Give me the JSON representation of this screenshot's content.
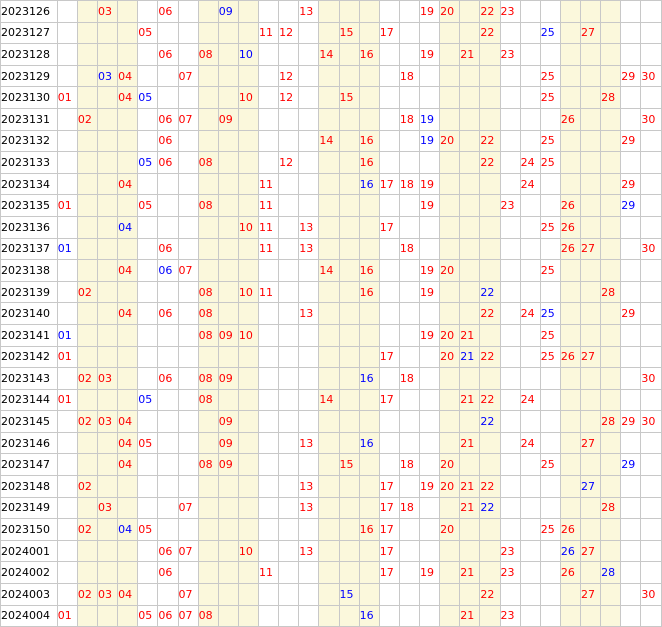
{
  "colors": {
    "red": "#ff0000",
    "blue": "#0000ff",
    "shade": "#fbf8dc",
    "grid": "#c8c8c8"
  },
  "number_columns": [
    "01",
    "02",
    "03",
    "04",
    "05",
    "06",
    "07",
    "08",
    "09",
    "10",
    "11",
    "12",
    "13",
    "14",
    "15",
    "16",
    "17",
    "18",
    "19",
    "20",
    "21",
    "22",
    "23",
    "24",
    "25",
    "26",
    "27",
    "28",
    "29",
    "30"
  ],
  "shaded_columns": [
    "02",
    "03",
    "04",
    "08",
    "09",
    "10",
    "14",
    "15",
    "16",
    "20",
    "21",
    "22",
    "26",
    "27",
    "28"
  ],
  "rows": [
    {
      "period": "2023126",
      "cells": [
        [
          "03",
          "r"
        ],
        [
          "06",
          "r"
        ],
        [
          "09",
          "b"
        ],
        [
          "13",
          "r"
        ],
        [
          "19",
          "r"
        ],
        [
          "20",
          "r"
        ],
        [
          "22",
          "r"
        ],
        [
          "23",
          "r"
        ]
      ]
    },
    {
      "period": "2023127",
      "cells": [
        [
          "05",
          "r"
        ],
        [
          "11",
          "r"
        ],
        [
          "12",
          "r"
        ],
        [
          "15",
          "r"
        ],
        [
          "17",
          "r"
        ],
        [
          "22",
          "r"
        ],
        [
          "25",
          "b"
        ],
        [
          "27",
          "r"
        ]
      ]
    },
    {
      "period": "2023128",
      "cells": [
        [
          "06",
          "r"
        ],
        [
          "08",
          "r"
        ],
        [
          "10",
          "b"
        ],
        [
          "14",
          "r"
        ],
        [
          "16",
          "r"
        ],
        [
          "19",
          "r"
        ],
        [
          "21",
          "r"
        ],
        [
          "23",
          "r"
        ]
      ]
    },
    {
      "period": "2023129",
      "cells": [
        [
          "03",
          "b"
        ],
        [
          "04",
          "r"
        ],
        [
          "07",
          "r"
        ],
        [
          "12",
          "r"
        ],
        [
          "18",
          "r"
        ],
        [
          "25",
          "r"
        ],
        [
          "29",
          "r"
        ],
        [
          "30",
          "r"
        ]
      ]
    },
    {
      "period": "2023130",
      "cells": [
        [
          "01",
          "r"
        ],
        [
          "04",
          "r"
        ],
        [
          "05",
          "b"
        ],
        [
          "10",
          "r"
        ],
        [
          "12",
          "r"
        ],
        [
          "15",
          "r"
        ],
        [
          "25",
          "r"
        ],
        [
          "28",
          "r"
        ]
      ]
    },
    {
      "period": "2023131",
      "cells": [
        [
          "02",
          "r"
        ],
        [
          "06",
          "r"
        ],
        [
          "07",
          "r"
        ],
        [
          "09",
          "r"
        ],
        [
          "18",
          "r"
        ],
        [
          "19",
          "b"
        ],
        [
          "26",
          "r"
        ],
        [
          "30",
          "r"
        ]
      ]
    },
    {
      "period": "2023132",
      "cells": [
        [
          "06",
          "r"
        ],
        [
          "14",
          "r"
        ],
        [
          "16",
          "r"
        ],
        [
          "19",
          "b"
        ],
        [
          "20",
          "r"
        ],
        [
          "22",
          "r"
        ],
        [
          "25",
          "r"
        ],
        [
          "29",
          "r"
        ]
      ]
    },
    {
      "period": "2023133",
      "cells": [
        [
          "05",
          "b"
        ],
        [
          "06",
          "r"
        ],
        [
          "08",
          "r"
        ],
        [
          "12",
          "r"
        ],
        [
          "16",
          "r"
        ],
        [
          "22",
          "r"
        ],
        [
          "24",
          "r"
        ],
        [
          "25",
          "r"
        ]
      ]
    },
    {
      "period": "2023134",
      "cells": [
        [
          "04",
          "r"
        ],
        [
          "11",
          "r"
        ],
        [
          "16",
          "b"
        ],
        [
          "17",
          "r"
        ],
        [
          "18",
          "r"
        ],
        [
          "19",
          "r"
        ],
        [
          "24",
          "r"
        ],
        [
          "29",
          "r"
        ]
      ]
    },
    {
      "period": "2023135",
      "cells": [
        [
          "01",
          "r"
        ],
        [
          "05",
          "r"
        ],
        [
          "08",
          "r"
        ],
        [
          "11",
          "r"
        ],
        [
          "19",
          "r"
        ],
        [
          "23",
          "r"
        ],
        [
          "26",
          "r"
        ],
        [
          "29",
          "b"
        ]
      ]
    },
    {
      "period": "2023136",
      "cells": [
        [
          "04",
          "b"
        ],
        [
          "10",
          "r"
        ],
        [
          "11",
          "r"
        ],
        [
          "13",
          "r"
        ],
        [
          "17",
          "r"
        ],
        [
          "25",
          "r"
        ],
        [
          "26",
          "r"
        ]
      ]
    },
    {
      "period": "2023137",
      "cells": [
        [
          "01",
          "b"
        ],
        [
          "06",
          "r"
        ],
        [
          "11",
          "r"
        ],
        [
          "13",
          "r"
        ],
        [
          "18",
          "r"
        ],
        [
          "26",
          "r"
        ],
        [
          "27",
          "r"
        ],
        [
          "30",
          "r"
        ]
      ]
    },
    {
      "period": "2023138",
      "cells": [
        [
          "04",
          "r"
        ],
        [
          "06",
          "b"
        ],
        [
          "07",
          "r"
        ],
        [
          "14",
          "r"
        ],
        [
          "16",
          "r"
        ],
        [
          "19",
          "r"
        ],
        [
          "20",
          "r"
        ],
        [
          "25",
          "r"
        ]
      ]
    },
    {
      "period": "2023139",
      "cells": [
        [
          "02",
          "r"
        ],
        [
          "08",
          "r"
        ],
        [
          "10",
          "r"
        ],
        [
          "11",
          "r"
        ],
        [
          "16",
          "r"
        ],
        [
          "19",
          "r"
        ],
        [
          "22",
          "b"
        ],
        [
          "28",
          "r"
        ]
      ]
    },
    {
      "period": "2023140",
      "cells": [
        [
          "04",
          "r"
        ],
        [
          "06",
          "r"
        ],
        [
          "08",
          "r"
        ],
        [
          "13",
          "r"
        ],
        [
          "22",
          "r"
        ],
        [
          "24",
          "r"
        ],
        [
          "25",
          "b"
        ],
        [
          "29",
          "r"
        ]
      ]
    },
    {
      "period": "2023141",
      "cells": [
        [
          "01",
          "b"
        ],
        [
          "08",
          "r"
        ],
        [
          "09",
          "r"
        ],
        [
          "10",
          "r"
        ],
        [
          "19",
          "r"
        ],
        [
          "20",
          "r"
        ],
        [
          "21",
          "r"
        ],
        [
          "25",
          "r"
        ]
      ]
    },
    {
      "period": "2023142",
      "cells": [
        [
          "01",
          "r"
        ],
        [
          "17",
          "r"
        ],
        [
          "20",
          "r"
        ],
        [
          "21",
          "b"
        ],
        [
          "22",
          "r"
        ],
        [
          "25",
          "r"
        ],
        [
          "26",
          "r"
        ],
        [
          "27",
          "r"
        ]
      ]
    },
    {
      "period": "2023143",
      "cells": [
        [
          "02",
          "r"
        ],
        [
          "03",
          "r"
        ],
        [
          "06",
          "r"
        ],
        [
          "08",
          "r"
        ],
        [
          "09",
          "r"
        ],
        [
          "16",
          "b"
        ],
        [
          "18",
          "r"
        ],
        [
          "30",
          "r"
        ]
      ]
    },
    {
      "period": "2023144",
      "cells": [
        [
          "01",
          "r"
        ],
        [
          "05",
          "b"
        ],
        [
          "08",
          "r"
        ],
        [
          "14",
          "r"
        ],
        [
          "17",
          "r"
        ],
        [
          "21",
          "r"
        ],
        [
          "22",
          "r"
        ],
        [
          "24",
          "r"
        ]
      ]
    },
    {
      "period": "2023145",
      "cells": [
        [
          "02",
          "r"
        ],
        [
          "03",
          "r"
        ],
        [
          "04",
          "r"
        ],
        [
          "09",
          "r"
        ],
        [
          "22",
          "b"
        ],
        [
          "28",
          "r"
        ],
        [
          "29",
          "r"
        ],
        [
          "30",
          "r"
        ]
      ]
    },
    {
      "period": "2023146",
      "cells": [
        [
          "04",
          "r"
        ],
        [
          "05",
          "r"
        ],
        [
          "09",
          "r"
        ],
        [
          "13",
          "r"
        ],
        [
          "16",
          "b"
        ],
        [
          "21",
          "r"
        ],
        [
          "24",
          "r"
        ],
        [
          "27",
          "r"
        ]
      ]
    },
    {
      "period": "2023147",
      "cells": [
        [
          "04",
          "r"
        ],
        [
          "08",
          "r"
        ],
        [
          "09",
          "r"
        ],
        [
          "15",
          "r"
        ],
        [
          "18",
          "r"
        ],
        [
          "20",
          "r"
        ],
        [
          "25",
          "r"
        ],
        [
          "29",
          "b"
        ]
      ]
    },
    {
      "period": "2023148",
      "cells": [
        [
          "02",
          "r"
        ],
        [
          "13",
          "r"
        ],
        [
          "17",
          "r"
        ],
        [
          "19",
          "r"
        ],
        [
          "20",
          "r"
        ],
        [
          "21",
          "r"
        ],
        [
          "22",
          "r"
        ],
        [
          "27",
          "b"
        ]
      ]
    },
    {
      "period": "2023149",
      "cells": [
        [
          "03",
          "r"
        ],
        [
          "07",
          "r"
        ],
        [
          "13",
          "r"
        ],
        [
          "17",
          "r"
        ],
        [
          "18",
          "r"
        ],
        [
          "21",
          "r"
        ],
        [
          "22",
          "b"
        ],
        [
          "28",
          "r"
        ]
      ]
    },
    {
      "period": "2023150",
      "cells": [
        [
          "02",
          "r"
        ],
        [
          "04",
          "b"
        ],
        [
          "05",
          "r"
        ],
        [
          "16",
          "r"
        ],
        [
          "17",
          "r"
        ],
        [
          "20",
          "r"
        ],
        [
          "25",
          "r"
        ],
        [
          "26",
          "r"
        ]
      ]
    },
    {
      "period": "2024001",
      "cells": [
        [
          "06",
          "r"
        ],
        [
          "07",
          "r"
        ],
        [
          "10",
          "r"
        ],
        [
          "13",
          "r"
        ],
        [
          "17",
          "r"
        ],
        [
          "23",
          "r"
        ],
        [
          "26",
          "b"
        ],
        [
          "27",
          "r"
        ]
      ]
    },
    {
      "period": "2024002",
      "cells": [
        [
          "06",
          "r"
        ],
        [
          "11",
          "r"
        ],
        [
          "17",
          "r"
        ],
        [
          "19",
          "r"
        ],
        [
          "21",
          "r"
        ],
        [
          "23",
          "r"
        ],
        [
          "26",
          "r"
        ],
        [
          "28",
          "b"
        ]
      ]
    },
    {
      "period": "2024003",
      "cells": [
        [
          "02",
          "r"
        ],
        [
          "03",
          "r"
        ],
        [
          "04",
          "r"
        ],
        [
          "07",
          "r"
        ],
        [
          "15",
          "b"
        ],
        [
          "22",
          "r"
        ],
        [
          "27",
          "r"
        ],
        [
          "30",
          "r"
        ]
      ]
    },
    {
      "period": "2024004",
      "cells": [
        [
          "01",
          "r"
        ],
        [
          "05",
          "r"
        ],
        [
          "06",
          "r"
        ],
        [
          "07",
          "r"
        ],
        [
          "08",
          "r"
        ],
        [
          "16",
          "b"
        ],
        [
          "21",
          "r"
        ],
        [
          "23",
          "r"
        ]
      ]
    }
  ]
}
